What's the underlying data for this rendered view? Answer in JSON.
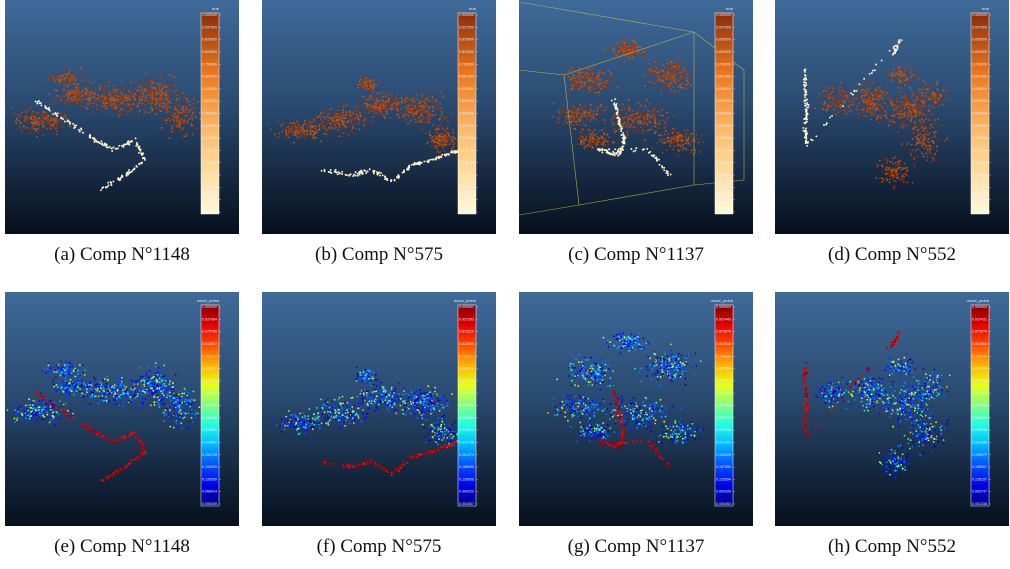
{
  "figure": {
    "panels": [
      {
        "id": "a",
        "caption": "(a) Comp N°1148",
        "colormap": "orange",
        "scalar_name": "true",
        "ticks": [
          "1.000000",
          "0.937500",
          "0.875000",
          "0.812500",
          "0.750000",
          "0.687500",
          "0.625000",
          "0.562500",
          "0.500000",
          "0.437500",
          "0.375000",
          "0.312500",
          "0.250000",
          "0.187500",
          "0.125000",
          "0.062500",
          "0.000000"
        ]
      },
      {
        "id": "b",
        "caption": "(b) Comp N°575",
        "colormap": "orange",
        "scalar_name": "true",
        "ticks": [
          "1.000000",
          "0.937500",
          "0.875000",
          "0.812500",
          "0.750000",
          "0.687500",
          "0.625000",
          "0.562500",
          "0.500000",
          "0.437500",
          "0.375000",
          "0.312500",
          "0.250000",
          "0.187500",
          "0.125000",
          "0.062500",
          "0.000000"
        ]
      },
      {
        "id": "c",
        "caption": "(c) Comp N°1137",
        "colormap": "orange",
        "scalar_name": "true",
        "ticks": [
          "1.000000",
          "0.937500",
          "0.875000",
          "0.812500",
          "0.750000",
          "0.687500",
          "0.625000",
          "0.562500",
          "0.500000",
          "0.437500",
          "0.375000",
          "0.312500",
          "0.250000",
          "0.187500",
          "0.125000",
          "0.062500",
          "0.000000"
        ]
      },
      {
        "id": "d",
        "caption": "(d) Comp N°552",
        "colormap": "orange",
        "scalar_name": "true",
        "ticks": [
          "1.000000",
          "0.937500",
          "0.875000",
          "0.812500",
          "0.750000",
          "0.687500",
          "0.625000",
          "0.562500",
          "0.500000",
          "0.437500",
          "0.375000",
          "0.312500",
          "0.250000",
          "0.187500",
          "0.125000",
          "0.062500",
          "0.000000"
        ]
      },
      {
        "id": "e",
        "caption": "(e) Comp N°1148",
        "colormap": "jet",
        "scalar_name": "wood_proba",
        "ticks": [
          "1.000000",
          "0.937994",
          "0.875766",
          "0.813572",
          "0.751372",
          "0.689177",
          "0.627866",
          "0.564993",
          "0.502660",
          "0.440480",
          "0.378542",
          "0.314831",
          "0.254733",
          "0.192620",
          "0.130530",
          "0.068414",
          "0.006309"
        ]
      },
      {
        "id": "f",
        "caption": "(f) Comp N°575",
        "colormap": "jet",
        "scalar_name": "wood_proba",
        "ticks": [
          "0.999061",
          "0.937393",
          "0.875210",
          "0.812650",
          "0.750421",
          "0.688063",
          "0.625679",
          "0.563294",
          "0.500910",
          "0.438526",
          "0.376142",
          "0.313758",
          "0.251374",
          "0.188990",
          "0.126606",
          "0.064222",
          "0.001837"
        ]
      },
      {
        "id": "g",
        "caption": "(g) Comp N°1137",
        "colormap": "jet",
        "scalar_name": "wood_proba",
        "ticks": [
          "0.999063",
          "0.937443",
          "0.875876",
          "0.812518",
          "0.749883",
          "0.687583",
          "0.625117",
          "0.562652",
          "0.500186",
          "0.437727",
          "0.375256",
          "0.312791",
          "0.250325",
          "0.187859",
          "0.125394",
          "0.062928",
          "0.000463"
        ]
      },
      {
        "id": "h",
        "caption": "(h) Comp N°552",
        "colormap": "jet",
        "scalar_name": "wood_proba",
        "ticks": [
          "0.999063",
          "0.937431",
          "0.875074",
          "0.812664",
          "0.750254",
          "0.687845",
          "0.625435",
          "0.563025",
          "0.500616",
          "0.438206",
          "0.375796",
          "0.313386",
          "0.250977",
          "0.188567",
          "0.126157",
          "0.063747",
          "0.001338"
        ]
      }
    ]
  }
}
